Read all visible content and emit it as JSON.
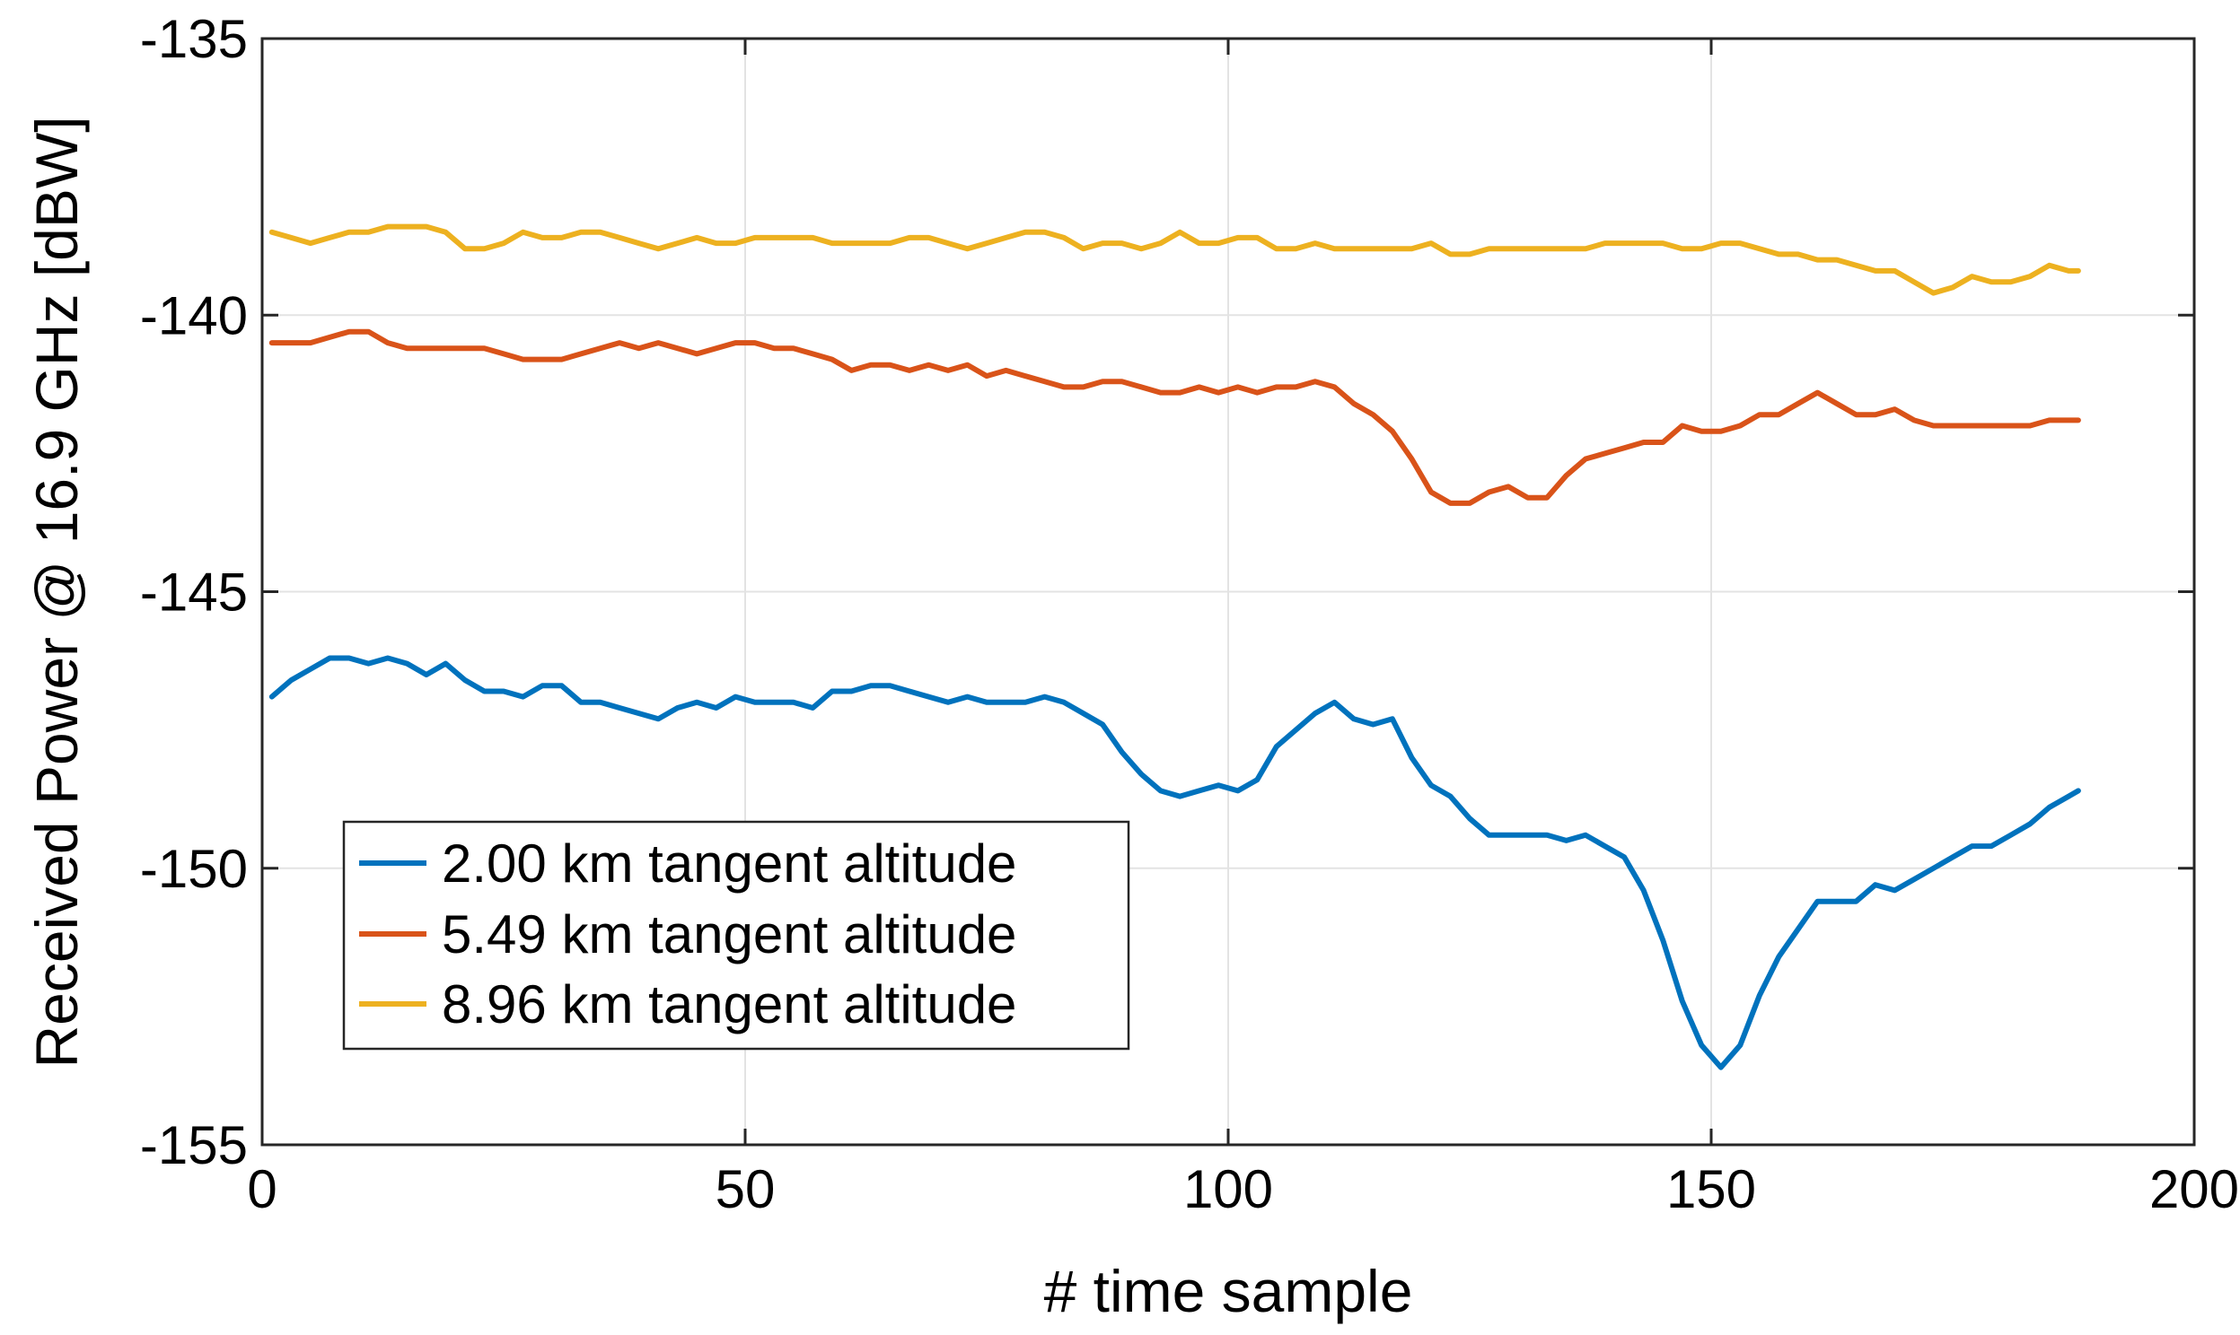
{
  "chart_data": {
    "type": "line",
    "title": "",
    "xlabel": "# time sample",
    "ylabel": "Received Power @ 16.9 GHz [dBW]",
    "xlim": [
      0,
      200
    ],
    "ylim": [
      -155,
      -135
    ],
    "xticks": [
      0,
      50,
      100,
      150,
      200
    ],
    "yticks": [
      -135,
      -140,
      -145,
      -150,
      -155
    ],
    "xtick_labels": [
      "0",
      "50",
      "100",
      "150",
      "200"
    ],
    "ytick_labels": [
      "-135",
      "-140",
      "-145",
      "-150",
      "-155"
    ],
    "grid": true,
    "legend_position": "bottom-left",
    "series": [
      {
        "name": "2.00 km tangent altitude",
        "color": "#0072BD",
        "points": [
          [
            1,
            -146.9
          ],
          [
            3,
            -146.6
          ],
          [
            5,
            -146.4
          ],
          [
            7,
            -146.2
          ],
          [
            9,
            -146.2
          ],
          [
            11,
            -146.3
          ],
          [
            13,
            -146.2
          ],
          [
            15,
            -146.3
          ],
          [
            17,
            -146.5
          ],
          [
            19,
            -146.3
          ],
          [
            21,
            -146.6
          ],
          [
            23,
            -146.8
          ],
          [
            25,
            -146.8
          ],
          [
            27,
            -146.9
          ],
          [
            29,
            -146.7
          ],
          [
            31,
            -146.7
          ],
          [
            33,
            -147.0
          ],
          [
            35,
            -147.0
          ],
          [
            37,
            -147.1
          ],
          [
            39,
            -147.2
          ],
          [
            41,
            -147.3
          ],
          [
            43,
            -147.1
          ],
          [
            45,
            -147.0
          ],
          [
            47,
            -147.1
          ],
          [
            49,
            -146.9
          ],
          [
            51,
            -147.0
          ],
          [
            53,
            -147.0
          ],
          [
            55,
            -147.0
          ],
          [
            57,
            -147.1
          ],
          [
            59,
            -146.8
          ],
          [
            61,
            -146.8
          ],
          [
            63,
            -146.7
          ],
          [
            65,
            -146.7
          ],
          [
            67,
            -146.8
          ],
          [
            69,
            -146.9
          ],
          [
            71,
            -147.0
          ],
          [
            73,
            -146.9
          ],
          [
            75,
            -147.0
          ],
          [
            77,
            -147.0
          ],
          [
            79,
            -147.0
          ],
          [
            81,
            -146.9
          ],
          [
            83,
            -147.0
          ],
          [
            85,
            -147.2
          ],
          [
            87,
            -147.4
          ],
          [
            89,
            -147.9
          ],
          [
            91,
            -148.3
          ],
          [
            93,
            -148.6
          ],
          [
            95,
            -148.7
          ],
          [
            97,
            -148.6
          ],
          [
            99,
            -148.5
          ],
          [
            101,
            -148.6
          ],
          [
            103,
            -148.4
          ],
          [
            105,
            -147.8
          ],
          [
            107,
            -147.5
          ],
          [
            109,
            -147.2
          ],
          [
            111,
            -147.0
          ],
          [
            113,
            -147.3
          ],
          [
            115,
            -147.4
          ],
          [
            117,
            -147.3
          ],
          [
            119,
            -148.0
          ],
          [
            121,
            -148.5
          ],
          [
            123,
            -148.7
          ],
          [
            125,
            -149.1
          ],
          [
            127,
            -149.4
          ],
          [
            129,
            -149.4
          ],
          [
            131,
            -149.4
          ],
          [
            133,
            -149.4
          ],
          [
            135,
            -149.5
          ],
          [
            137,
            -149.4
          ],
          [
            139,
            -149.6
          ],
          [
            141,
            -149.8
          ],
          [
            143,
            -150.4
          ],
          [
            145,
            -151.3
          ],
          [
            147,
            -152.4
          ],
          [
            149,
            -153.2
          ],
          [
            151,
            -153.6
          ],
          [
            153,
            -153.2
          ],
          [
            155,
            -152.3
          ],
          [
            157,
            -151.6
          ],
          [
            159,
            -151.1
          ],
          [
            161,
            -150.6
          ],
          [
            163,
            -150.6
          ],
          [
            165,
            -150.6
          ],
          [
            167,
            -150.3
          ],
          [
            169,
            -150.4
          ],
          [
            171,
            -150.2
          ],
          [
            173,
            -150.0
          ],
          [
            175,
            -149.8
          ],
          [
            177,
            -149.6
          ],
          [
            179,
            -149.6
          ],
          [
            181,
            -149.4
          ],
          [
            183,
            -149.2
          ],
          [
            185,
            -148.9
          ],
          [
            187,
            -148.7
          ],
          [
            188,
            -148.6
          ]
        ]
      },
      {
        "name": "5.49 km tangent altitude",
        "color": "#D95319",
        "points": [
          [
            1,
            -140.5
          ],
          [
            3,
            -140.5
          ],
          [
            5,
            -140.5
          ],
          [
            7,
            -140.4
          ],
          [
            9,
            -140.3
          ],
          [
            11,
            -140.3
          ],
          [
            13,
            -140.5
          ],
          [
            15,
            -140.6
          ],
          [
            17,
            -140.6
          ],
          [
            19,
            -140.6
          ],
          [
            21,
            -140.6
          ],
          [
            23,
            -140.6
          ],
          [
            25,
            -140.7
          ],
          [
            27,
            -140.8
          ],
          [
            29,
            -140.8
          ],
          [
            31,
            -140.8
          ],
          [
            33,
            -140.7
          ],
          [
            35,
            -140.6
          ],
          [
            37,
            -140.5
          ],
          [
            39,
            -140.6
          ],
          [
            41,
            -140.5
          ],
          [
            43,
            -140.6
          ],
          [
            45,
            -140.7
          ],
          [
            47,
            -140.6
          ],
          [
            49,
            -140.5
          ],
          [
            51,
            -140.5
          ],
          [
            53,
            -140.6
          ],
          [
            55,
            -140.6
          ],
          [
            57,
            -140.7
          ],
          [
            59,
            -140.8
          ],
          [
            61,
            -141.0
          ],
          [
            63,
            -140.9
          ],
          [
            65,
            -140.9
          ],
          [
            67,
            -141.0
          ],
          [
            69,
            -140.9
          ],
          [
            71,
            -141.0
          ],
          [
            73,
            -140.9
          ],
          [
            75,
            -141.1
          ],
          [
            77,
            -141.0
          ],
          [
            79,
            -141.1
          ],
          [
            81,
            -141.2
          ],
          [
            83,
            -141.3
          ],
          [
            85,
            -141.3
          ],
          [
            87,
            -141.2
          ],
          [
            89,
            -141.2
          ],
          [
            91,
            -141.3
          ],
          [
            93,
            -141.4
          ],
          [
            95,
            -141.4
          ],
          [
            97,
            -141.3
          ],
          [
            99,
            -141.4
          ],
          [
            101,
            -141.3
          ],
          [
            103,
            -141.4
          ],
          [
            105,
            -141.3
          ],
          [
            107,
            -141.3
          ],
          [
            109,
            -141.2
          ],
          [
            111,
            -141.3
          ],
          [
            113,
            -141.6
          ],
          [
            115,
            -141.8
          ],
          [
            117,
            -142.1
          ],
          [
            119,
            -142.6
          ],
          [
            121,
            -143.2
          ],
          [
            123,
            -143.4
          ],
          [
            125,
            -143.4
          ],
          [
            127,
            -143.2
          ],
          [
            129,
            -143.1
          ],
          [
            131,
            -143.3
          ],
          [
            133,
            -143.3
          ],
          [
            135,
            -142.9
          ],
          [
            137,
            -142.6
          ],
          [
            139,
            -142.5
          ],
          [
            141,
            -142.4
          ],
          [
            143,
            -142.3
          ],
          [
            145,
            -142.3
          ],
          [
            147,
            -142.0
          ],
          [
            149,
            -142.1
          ],
          [
            151,
            -142.1
          ],
          [
            153,
            -142.0
          ],
          [
            155,
            -141.8
          ],
          [
            157,
            -141.8
          ],
          [
            159,
            -141.6
          ],
          [
            161,
            -141.4
          ],
          [
            163,
            -141.6
          ],
          [
            165,
            -141.8
          ],
          [
            167,
            -141.8
          ],
          [
            169,
            -141.7
          ],
          [
            171,
            -141.9
          ],
          [
            173,
            -142.0
          ],
          [
            175,
            -142.0
          ],
          [
            177,
            -142.0
          ],
          [
            179,
            -142.0
          ],
          [
            181,
            -142.0
          ],
          [
            183,
            -142.0
          ],
          [
            185,
            -141.9
          ],
          [
            187,
            -141.9
          ],
          [
            188,
            -141.9
          ]
        ]
      },
      {
        "name": "8.96 km tangent altitude",
        "color": "#EDB120",
        "points": [
          [
            1,
            -138.5
          ],
          [
            3,
            -138.6
          ],
          [
            5,
            -138.7
          ],
          [
            7,
            -138.6
          ],
          [
            9,
            -138.5
          ],
          [
            11,
            -138.5
          ],
          [
            13,
            -138.4
          ],
          [
            15,
            -138.4
          ],
          [
            17,
            -138.4
          ],
          [
            19,
            -138.5
          ],
          [
            21,
            -138.8
          ],
          [
            23,
            -138.8
          ],
          [
            25,
            -138.7
          ],
          [
            27,
            -138.5
          ],
          [
            29,
            -138.6
          ],
          [
            31,
            -138.6
          ],
          [
            33,
            -138.5
          ],
          [
            35,
            -138.5
          ],
          [
            37,
            -138.6
          ],
          [
            39,
            -138.7
          ],
          [
            41,
            -138.8
          ],
          [
            43,
            -138.7
          ],
          [
            45,
            -138.6
          ],
          [
            47,
            -138.7
          ],
          [
            49,
            -138.7
          ],
          [
            51,
            -138.6
          ],
          [
            53,
            -138.6
          ],
          [
            55,
            -138.6
          ],
          [
            57,
            -138.6
          ],
          [
            59,
            -138.7
          ],
          [
            61,
            -138.7
          ],
          [
            63,
            -138.7
          ],
          [
            65,
            -138.7
          ],
          [
            67,
            -138.6
          ],
          [
            69,
            -138.6
          ],
          [
            71,
            -138.7
          ],
          [
            73,
            -138.8
          ],
          [
            75,
            -138.7
          ],
          [
            77,
            -138.6
          ],
          [
            79,
            -138.5
          ],
          [
            81,
            -138.5
          ],
          [
            83,
            -138.6
          ],
          [
            85,
            -138.8
          ],
          [
            87,
            -138.7
          ],
          [
            89,
            -138.7
          ],
          [
            91,
            -138.8
          ],
          [
            93,
            -138.7
          ],
          [
            95,
            -138.5
          ],
          [
            97,
            -138.7
          ],
          [
            99,
            -138.7
          ],
          [
            101,
            -138.6
          ],
          [
            103,
            -138.6
          ],
          [
            105,
            -138.8
          ],
          [
            107,
            -138.8
          ],
          [
            109,
            -138.7
          ],
          [
            111,
            -138.8
          ],
          [
            113,
            -138.8
          ],
          [
            115,
            -138.8
          ],
          [
            117,
            -138.8
          ],
          [
            119,
            -138.8
          ],
          [
            121,
            -138.7
          ],
          [
            123,
            -138.9
          ],
          [
            125,
            -138.9
          ],
          [
            127,
            -138.8
          ],
          [
            129,
            -138.8
          ],
          [
            131,
            -138.8
          ],
          [
            133,
            -138.8
          ],
          [
            135,
            -138.8
          ],
          [
            137,
            -138.8
          ],
          [
            139,
            -138.7
          ],
          [
            141,
            -138.7
          ],
          [
            143,
            -138.7
          ],
          [
            145,
            -138.7
          ],
          [
            147,
            -138.8
          ],
          [
            149,
            -138.8
          ],
          [
            151,
            -138.7
          ],
          [
            153,
            -138.7
          ],
          [
            155,
            -138.8
          ],
          [
            157,
            -138.9
          ],
          [
            159,
            -138.9
          ],
          [
            161,
            -139.0
          ],
          [
            163,
            -139.0
          ],
          [
            165,
            -139.1
          ],
          [
            167,
            -139.2
          ],
          [
            169,
            -139.2
          ],
          [
            171,
            -139.4
          ],
          [
            173,
            -139.6
          ],
          [
            175,
            -139.5
          ],
          [
            177,
            -139.3
          ],
          [
            179,
            -139.4
          ],
          [
            181,
            -139.4
          ],
          [
            183,
            -139.3
          ],
          [
            185,
            -139.1
          ],
          [
            187,
            -139.2
          ],
          [
            188,
            -139.2
          ]
        ]
      }
    ]
  }
}
